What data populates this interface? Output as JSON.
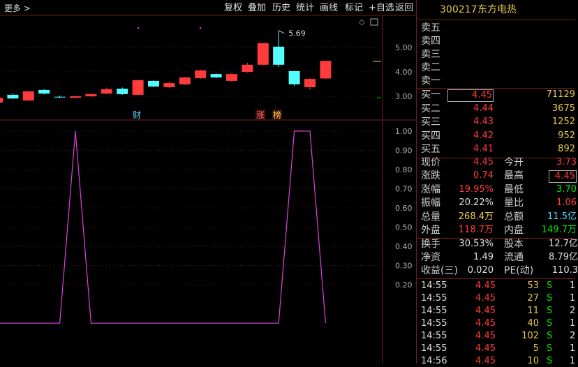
{
  "toolbar": {
    "more": "更多 >",
    "buttons": [
      "复权",
      "叠加",
      "历史",
      "统计",
      "画线",
      "标记",
      "+自选",
      "返回"
    ]
  },
  "kline": {
    "ylim": [
      2.03,
      6.31
    ],
    "yticks": [
      {
        "value": 5,
        "label": "5.00"
      },
      {
        "value": 4,
        "label": "4.00"
      },
      {
        "value": 3,
        "label": "3.00"
      }
    ],
    "up_color": "#ff3b3b",
    "down_color": "#54ffff",
    "candles": [
      {
        "open": 2.74,
        "high": 2.97,
        "low": 2.72,
        "close": 2.94
      },
      {
        "open": 3.06,
        "high": 3.12,
        "low": 2.89,
        "close": 2.91
      },
      {
        "open": 2.83,
        "high": 3.22,
        "low": 2.8,
        "close": 3.2
      },
      {
        "open": 3.26,
        "high": 3.3,
        "low": 3.08,
        "close": 3.11
      },
      {
        "open": 2.98,
        "high": 3.03,
        "low": 2.93,
        "close": 2.96
      },
      {
        "open": 2.94,
        "high": 3.04,
        "low": 2.91,
        "close": 3.0
      },
      {
        "open": 3.0,
        "high": 3.13,
        "low": 2.97,
        "close": 3.09
      },
      {
        "open": 3.11,
        "high": 3.36,
        "low": 3.09,
        "close": 3.29
      },
      {
        "open": 3.31,
        "high": 3.36,
        "low": 3.06,
        "close": 3.09
      },
      {
        "open": 3.06,
        "high": 3.68,
        "low": 3.03,
        "close": 3.66
      },
      {
        "open": 3.63,
        "high": 3.66,
        "low": 3.37,
        "close": 3.4
      },
      {
        "open": 3.37,
        "high": 3.6,
        "low": 3.34,
        "close": 3.54
      },
      {
        "open": 3.49,
        "high": 3.8,
        "low": 3.46,
        "close": 3.77
      },
      {
        "open": 3.74,
        "high": 4.09,
        "low": 3.71,
        "close": 4.06
      },
      {
        "open": 3.91,
        "high": 3.94,
        "low": 3.74,
        "close": 3.77
      },
      {
        "open": 3.63,
        "high": 3.97,
        "low": 3.6,
        "close": 3.91
      },
      {
        "open": 4.0,
        "high": 4.37,
        "low": 3.97,
        "close": 4.29
      },
      {
        "open": 4.29,
        "high": 5.17,
        "low": 4.26,
        "close": 5.17
      },
      {
        "open": 5.03,
        "high": 5.69,
        "low": 4.2,
        "close": 4.29
      },
      {
        "open": 4.03,
        "high": 4.03,
        "low": 3.43,
        "close": 3.49
      },
      {
        "open": 3.37,
        "high": 3.74,
        "low": 3.26,
        "close": 3.71
      },
      {
        "open": 3.73,
        "high": 4.45,
        "low": 3.7,
        "close": 4.45
      }
    ],
    "high_label": "5.69",
    "markers": [
      "财",
      "涨",
      "榜"
    ]
  },
  "indicator": {
    "ylim": [
      -0.21,
      1.054
    ],
    "color": "#e040e0",
    "yticks": [
      {
        "value": 1,
        "label": "1.00"
      },
      {
        "value": 0.9,
        "label": "0.90"
      },
      {
        "value": 0.8,
        "label": "0.80"
      },
      {
        "value": 0.7,
        "label": "0.70"
      },
      {
        "value": 0.6,
        "label": "0.60"
      },
      {
        "value": 0.5,
        "label": "0.50"
      },
      {
        "value": 0.4,
        "label": "0.40"
      },
      {
        "value": 0.3,
        "label": "0.30"
      },
      {
        "value": 0.2,
        "label": "0.20"
      }
    ],
    "values": [
      0,
      0,
      0,
      0,
      0,
      1,
      0,
      0,
      0,
      0,
      0,
      0,
      0,
      0,
      0,
      0,
      0,
      0,
      0,
      1,
      1,
      0
    ]
  },
  "quote": {
    "code": "300217",
    "name": "东方电热",
    "asks": [
      "卖五",
      "卖四",
      "卖三",
      "卖二",
      "卖一"
    ],
    "bids": [
      {
        "label": "买一",
        "price": "4.45",
        "volume": "71129"
      },
      {
        "label": "买二",
        "price": "4.44",
        "volume": "3675"
      },
      {
        "label": "买三",
        "price": "4.43",
        "volume": "1252"
      },
      {
        "label": "买四",
        "price": "4.42",
        "volume": "952"
      },
      {
        "label": "买五",
        "price": "4.41",
        "volume": "892"
      }
    ],
    "stats": [
      [
        {
          "label": "现价",
          "value": "4.45",
          "color": "#ff3b3b"
        },
        {
          "label": "今开",
          "value": "3.73",
          "color": "#ff3b3b"
        }
      ],
      [
        {
          "label": "涨跌",
          "value": "0.74",
          "color": "#ff3b3b"
        },
        {
          "label": "最高",
          "value": "4.45",
          "color": "#ff3b3b",
          "boxed": true
        }
      ],
      [
        {
          "label": "涨幅",
          "value": "19.95%",
          "color": "#ff3b3b"
        },
        {
          "label": "最低",
          "value": "3.70",
          "color": "#00e600"
        }
      ],
      [
        {
          "label": "振幅",
          "value": "20.22%",
          "color": "#e0e0e0"
        },
        {
          "label": "量比",
          "value": "1.06",
          "color": "#ff3b3b"
        }
      ],
      [
        {
          "label": "总量",
          "value": "268.4万",
          "color": "#e6c84b"
        },
        {
          "label": "总额",
          "value": "11.5亿",
          "color": "#5bd3ff"
        }
      ],
      [
        {
          "label": "外盘",
          "value": "118.7万",
          "color": "#ff3b3b"
        },
        {
          "label": "内盘",
          "value": "149.7万",
          "color": "#00e600"
        }
      ]
    ],
    "finance": [
      [
        {
          "label": "换手",
          "value": "30.53%"
        },
        {
          "label": "股本",
          "value": "12.7亿"
        }
      ],
      [
        {
          "label": "净资",
          "value": "1.49"
        },
        {
          "label": "流通",
          "value": "8.79亿"
        }
      ],
      [
        {
          "label": "收益(三)",
          "value": "0.020"
        },
        {
          "label": "PE(动)",
          "value": "110.3"
        }
      ]
    ],
    "ticks": [
      [
        "14:55",
        "4.45",
        "53",
        "S",
        "1"
      ],
      [
        "14:55",
        "4.45",
        "27",
        "S",
        "1"
      ],
      [
        "14:55",
        "4.45",
        "11",
        "S",
        "2"
      ],
      [
        "14:55",
        "4.45",
        "40",
        "S",
        "1"
      ],
      [
        "14:55",
        "4.45",
        "102",
        "S",
        "2"
      ],
      [
        "14:55",
        "4.45",
        "5",
        "S",
        "1"
      ],
      [
        "14:56",
        "4.45",
        "10",
        "S",
        "1"
      ]
    ]
  }
}
